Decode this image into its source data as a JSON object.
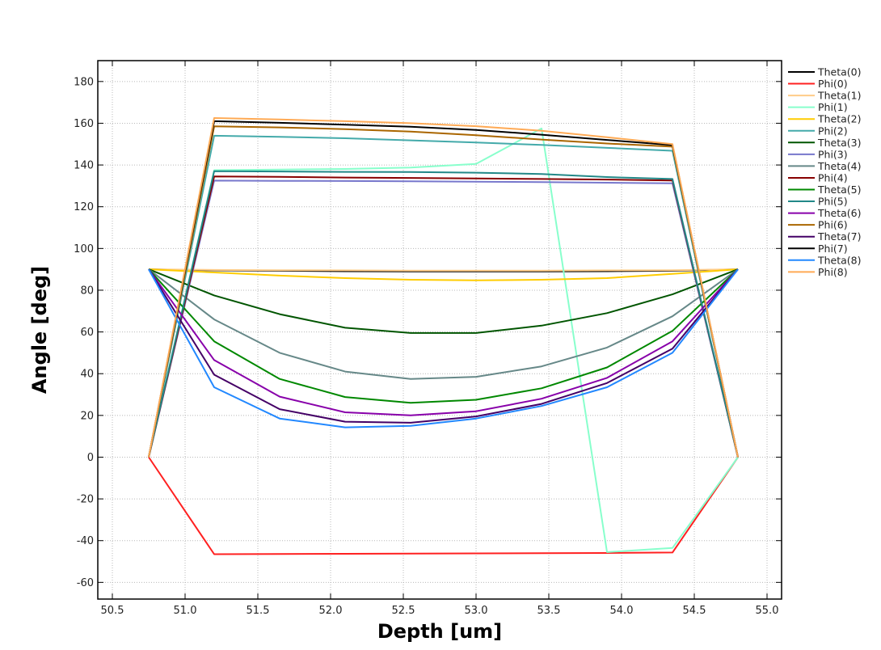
{
  "chart_data": {
    "type": "line",
    "title": "",
    "xlabel": "Depth [um]",
    "ylabel": "Angle [deg]",
    "xlim": [
      50.4,
      55.1
    ],
    "ylim": [
      -68,
      190
    ],
    "xticks": [
      50.5,
      51.0,
      51.5,
      52.0,
      52.5,
      53.0,
      53.5,
      54.0,
      54.5,
      55.0
    ],
    "xtick_labels": [
      "50.5",
      "51.0",
      "51.5",
      "52.0",
      "52.5",
      "53.0",
      "53.5",
      "54.0",
      "54.5",
      "55.0"
    ],
    "yticks": [
      -60,
      -40,
      -20,
      0,
      20,
      40,
      60,
      80,
      100,
      120,
      140,
      160,
      180
    ],
    "ytick_labels": [
      "-60",
      "-40",
      "-20",
      "0",
      "20",
      "40",
      "60",
      "80",
      "100",
      "120",
      "140",
      "160",
      "180"
    ],
    "grid": true,
    "legend_position": "right",
    "x": [
      50.75,
      51.2,
      51.65,
      52.1,
      52.55,
      53.0,
      53.45,
      53.9,
      54.35,
      54.8
    ],
    "series": [
      {
        "name": "Theta(0)",
        "color": "#000000",
        "values": [
          90,
          89.5,
          89.3,
          89.1,
          89.0,
          89.0,
          89.0,
          89.1,
          89.3,
          90
        ]
      },
      {
        "name": "Phi(0)",
        "color": "#ff2020",
        "values": [
          0,
          -46.5,
          -46.4,
          -46.3,
          -46.2,
          -46.1,
          -46.0,
          -45.9,
          -45.7,
          0
        ]
      },
      {
        "name": "Theta(1)",
        "color": "#ffcc88",
        "values": [
          90,
          89.7,
          89.6,
          89.5,
          89.4,
          89.4,
          89.4,
          89.5,
          89.6,
          90
        ]
      },
      {
        "name": "Phi(1)",
        "color": "#88ffcc",
        "values": [
          0,
          137.5,
          137.8,
          138.1,
          138.8,
          140.5,
          157.5,
          -45.5,
          -43.5,
          0
        ]
      },
      {
        "name": "Theta(2)",
        "color": "#ffcc00",
        "values": [
          90,
          88.5,
          87.0,
          85.8,
          85.0,
          84.7,
          85.0,
          85.8,
          87.8,
          90
        ]
      },
      {
        "name": "Phi(2)",
        "color": "#44aaaa",
        "values": [
          0,
          154,
          153.5,
          152.8,
          151.8,
          150.8,
          149.6,
          148.2,
          146.8,
          0
        ]
      },
      {
        "name": "Theta(3)",
        "color": "#005500",
        "values": [
          90,
          77.5,
          68.5,
          62.0,
          59.5,
          59.5,
          63.0,
          69.0,
          78.0,
          90
        ]
      },
      {
        "name": "Phi(3)",
        "color": "#7777cc",
        "values": [
          0,
          132.5,
          132.4,
          132.3,
          132.2,
          132.0,
          131.8,
          131.5,
          131.2,
          0
        ]
      },
      {
        "name": "Theta(4)",
        "color": "#668888",
        "values": [
          90,
          66.0,
          50.0,
          41.0,
          37.5,
          38.5,
          43.5,
          52.5,
          67.5,
          90
        ]
      },
      {
        "name": "Phi(4)",
        "color": "#880000",
        "values": [
          0,
          134.5,
          134.3,
          134.0,
          133.8,
          133.5,
          133.3,
          133.0,
          132.6,
          0
        ]
      },
      {
        "name": "Theta(5)",
        "color": "#008800",
        "values": [
          90,
          55.5,
          37.5,
          28.8,
          26.0,
          27.5,
          33.0,
          43.0,
          60.5,
          90
        ]
      },
      {
        "name": "Phi(5)",
        "color": "#228888",
        "values": [
          0,
          137.0,
          136.9,
          136.7,
          136.6,
          136.3,
          135.7,
          134.2,
          133.3,
          0
        ]
      },
      {
        "name": "Theta(6)",
        "color": "#8800aa",
        "values": [
          90,
          46.5,
          29.0,
          21.5,
          20.0,
          22.0,
          28.0,
          38.0,
          55.5,
          90
        ]
      },
      {
        "name": "Phi(6)",
        "color": "#aa6600",
        "values": [
          0,
          158.5,
          158.0,
          157.2,
          156.0,
          154.3,
          152.2,
          150.3,
          148.8,
          0
        ]
      },
      {
        "name": "Theta(7)",
        "color": "#440066",
        "values": [
          90,
          39.5,
          23.0,
          17.0,
          16.5,
          19.5,
          25.5,
          35.5,
          52.0,
          90
        ]
      },
      {
        "name": "Phi(7)",
        "color": "#000000",
        "values": [
          0,
          161.0,
          160.2,
          159.3,
          158.3,
          156.8,
          154.5,
          152.0,
          149.5,
          0
        ]
      },
      {
        "name": "Theta(8)",
        "color": "#2288ff",
        "values": [
          90,
          33.5,
          18.5,
          14.3,
          15.0,
          18.5,
          24.5,
          33.5,
          50.0,
          90
        ]
      },
      {
        "name": "Phi(8)",
        "color": "#ffaa55",
        "values": [
          0,
          162.5,
          161.8,
          161.0,
          160.0,
          158.6,
          156.4,
          153.3,
          150.0,
          0
        ]
      }
    ]
  }
}
